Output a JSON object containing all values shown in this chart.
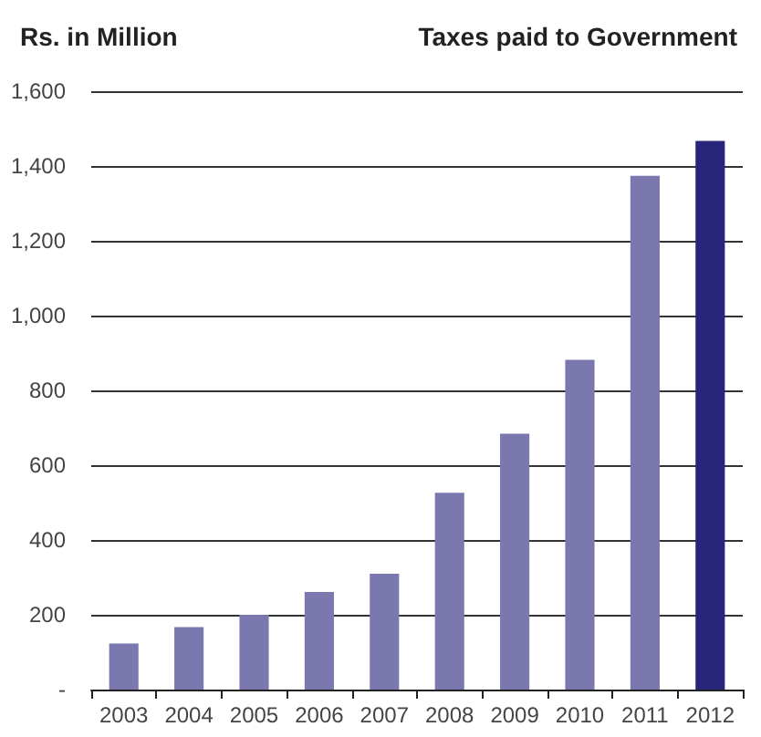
{
  "chart_data": {
    "type": "bar",
    "title": "Taxes paid to Government",
    "ylabel": "Rs. in Million",
    "categories": [
      "2003",
      "2004",
      "2005",
      "2006",
      "2007",
      "2008",
      "2009",
      "2010",
      "2011",
      "2012"
    ],
    "values": [
      123,
      167,
      200,
      261,
      310,
      526,
      684,
      882,
      1374,
      1467
    ],
    "colors": [
      "#7b78b0",
      "#7b78b0",
      "#7b78b0",
      "#7b78b0",
      "#7b78b0",
      "#7b78b0",
      "#7b78b0",
      "#7b78b0",
      "#7b78b0",
      "#28267a"
    ],
    "ylim": [
      0,
      1600
    ],
    "yticks": [
      {
        "value": 0,
        "label": "-"
      },
      {
        "value": 200,
        "label": "200"
      },
      {
        "value": 400,
        "label": "400"
      },
      {
        "value": 600,
        "label": "600"
      },
      {
        "value": 800,
        "label": "800"
      },
      {
        "value": 1000,
        "label": "1,000"
      },
      {
        "value": 1200,
        "label": "1,200"
      },
      {
        "value": 1400,
        "label": "1,400"
      },
      {
        "value": 1600,
        "label": "1,600"
      }
    ],
    "grid": "y"
  }
}
